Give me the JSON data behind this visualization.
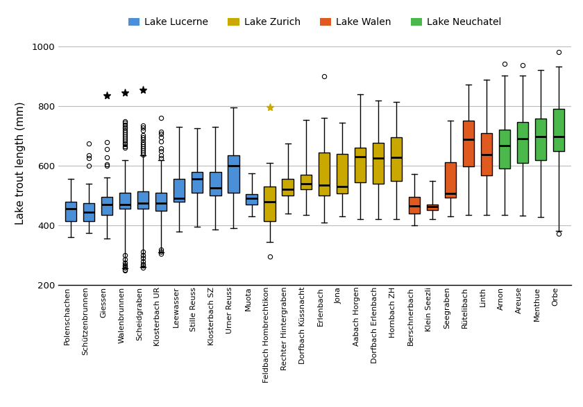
{
  "labels": [
    "Polenschachen",
    "Schützenbrunnen",
    "Giessen",
    "Walenbrunnen",
    "Scheidgraben",
    "Klosterbach UR",
    "Leewasser",
    "Stille Reuss",
    "Klosterbach SZ",
    "Urner Reuss",
    "Muota",
    "Feldbach Hombrechtikon",
    "Rechter Hintergraben",
    "Dorfbach Küssnacht",
    "Erlenbach",
    "Jona",
    "Aabach Horgen",
    "Dorfbach Erlenbach",
    "Hornbach ZH",
    "Berschnerbach",
    "Klein Seezli",
    "Seegraben",
    "Rütelibach",
    "Linth",
    "Arnon",
    "Areuse",
    "Menthue",
    "Orbe"
  ],
  "lake": [
    "Lucerne",
    "Lucerne",
    "Lucerne",
    "Lucerne",
    "Lucerne",
    "Lucerne",
    "Lucerne",
    "Lucerne",
    "Lucerne",
    "Lucerne",
    "Lucerne",
    "Zurich",
    "Zurich",
    "Zurich",
    "Zurich",
    "Zurich",
    "Zurich",
    "Zurich",
    "Zurich",
    "Walen",
    "Walen",
    "Walen",
    "Walen",
    "Walen",
    "Neuchatel",
    "Neuchatel",
    "Neuchatel",
    "Neuchatel"
  ],
  "colors": {
    "Lucerne": "#4a90d9",
    "Zurich": "#c9a800",
    "Walen": "#e05a20",
    "Neuchatel": "#4ab84a"
  },
  "boxes": [
    {
      "whislo": 360,
      "q1": 415,
      "med": 455,
      "q3": 480,
      "whishi": 555,
      "fliers": [],
      "stars": []
    },
    {
      "whislo": 375,
      "q1": 415,
      "med": 445,
      "q3": 475,
      "whishi": 540,
      "fliers": [
        600,
        625,
        635,
        675
      ],
      "stars": []
    },
    {
      "whislo": 355,
      "q1": 435,
      "med": 470,
      "q3": 495,
      "whishi": 560,
      "fliers": [
        600,
        605,
        628,
        655,
        680
      ],
      "stars": [
        835
      ]
    },
    {
      "whislo": 255,
      "q1": 455,
      "med": 470,
      "q3": 510,
      "whishi": 620,
      "fliers": [
        248,
        252,
        258,
        262,
        268,
        275,
        285,
        300,
        660,
        665,
        672,
        678,
        685,
        692,
        698,
        705,
        712,
        718,
        725,
        730,
        738,
        745,
        750
      ],
      "stars": [
        845
      ]
    },
    {
      "whislo": 260,
      "q1": 455,
      "med": 475,
      "q3": 515,
      "whishi": 635,
      "fliers": [
        258,
        264,
        270,
        278,
        290,
        300,
        312,
        638,
        645,
        652,
        658,
        665,
        672,
        680,
        688,
        695,
        702,
        718,
        728,
        735
      ],
      "stars": [
        855
      ]
    },
    {
      "whislo": 310,
      "q1": 450,
      "med": 475,
      "q3": 510,
      "whishi": 620,
      "fliers": [
        305,
        312,
        318,
        625,
        635,
        648,
        658,
        682,
        695,
        708,
        715,
        762
      ],
      "stars": []
    },
    {
      "whislo": 380,
      "q1": 480,
      "med": 490,
      "q3": 555,
      "whishi": 730,
      "fliers": [],
      "stars": []
    },
    {
      "whislo": 395,
      "q1": 510,
      "med": 555,
      "q3": 580,
      "whishi": 725,
      "fliers": [],
      "stars": []
    },
    {
      "whislo": 385,
      "q1": 500,
      "med": 525,
      "q3": 580,
      "whishi": 730,
      "fliers": [],
      "stars": []
    },
    {
      "whislo": 390,
      "q1": 510,
      "med": 600,
      "q3": 635,
      "whishi": 795,
      "fliers": [],
      "stars": []
    },
    {
      "whislo": 430,
      "q1": 470,
      "med": 490,
      "q3": 505,
      "whishi": 575,
      "fliers": [],
      "stars": []
    },
    {
      "whislo": 345,
      "q1": 415,
      "med": 480,
      "q3": 530,
      "whishi": 610,
      "fliers": [
        295
      ],
      "stars": [
        795
      ]
    },
    {
      "whislo": 440,
      "q1": 500,
      "med": 520,
      "q3": 555,
      "whishi": 675,
      "fliers": [],
      "stars": []
    },
    {
      "whislo": 435,
      "q1": 520,
      "med": 540,
      "q3": 570,
      "whishi": 755,
      "fliers": [],
      "stars": []
    },
    {
      "whislo": 410,
      "q1": 500,
      "med": 535,
      "q3": 645,
      "whishi": 760,
      "fliers": [
        900
      ],
      "stars": []
    },
    {
      "whislo": 430,
      "q1": 508,
      "med": 530,
      "q3": 640,
      "whishi": 745,
      "fliers": [],
      "stars": []
    },
    {
      "whislo": 420,
      "q1": 545,
      "med": 630,
      "q3": 660,
      "whishi": 840,
      "fliers": [],
      "stars": []
    },
    {
      "whislo": 420,
      "q1": 540,
      "med": 625,
      "q3": 678,
      "whishi": 820,
      "fliers": [],
      "stars": []
    },
    {
      "whislo": 420,
      "q1": 548,
      "med": 628,
      "q3": 695,
      "whishi": 815,
      "fliers": [],
      "stars": []
    },
    {
      "whislo": 400,
      "q1": 440,
      "med": 465,
      "q3": 495,
      "whishi": 572,
      "fliers": [],
      "stars": []
    },
    {
      "whislo": 420,
      "q1": 452,
      "med": 462,
      "q3": 470,
      "whishi": 548,
      "fliers": [],
      "stars": []
    },
    {
      "whislo": 430,
      "q1": 492,
      "med": 508,
      "q3": 612,
      "whishi": 752,
      "fliers": [],
      "stars": []
    },
    {
      "whislo": 435,
      "q1": 598,
      "med": 688,
      "q3": 752,
      "whishi": 872,
      "fliers": [],
      "stars": []
    },
    {
      "whislo": 435,
      "q1": 568,
      "med": 638,
      "q3": 710,
      "whishi": 888,
      "fliers": [],
      "stars": []
    },
    {
      "whislo": 435,
      "q1": 590,
      "med": 668,
      "q3": 722,
      "whishi": 902,
      "fliers": [
        942
      ],
      "stars": []
    },
    {
      "whislo": 432,
      "q1": 610,
      "med": 692,
      "q3": 748,
      "whishi": 902,
      "fliers": [
        938
      ],
      "stars": []
    },
    {
      "whislo": 428,
      "q1": 620,
      "med": 698,
      "q3": 758,
      "whishi": 922,
      "fliers": [],
      "stars": []
    },
    {
      "whislo": 382,
      "q1": 648,
      "med": 698,
      "q3": 792,
      "whishi": 932,
      "fliers": [
        372,
        982
      ],
      "stars": []
    }
  ],
  "ylabel": "Lake trout length (mm)",
  "ylim": [
    200,
    1020
  ],
  "yticks": [
    200,
    400,
    600,
    800,
    1000
  ],
  "legend_labels": [
    "Lake Lucerne",
    "Lake Zurich",
    "Lake Walen",
    "Lake Neuchatel"
  ],
  "legend_colors": [
    "#4a90d9",
    "#c9a800",
    "#e05a20",
    "#4ab84a"
  ],
  "background_color": "#ffffff",
  "grid_color": "#bbbbbb"
}
